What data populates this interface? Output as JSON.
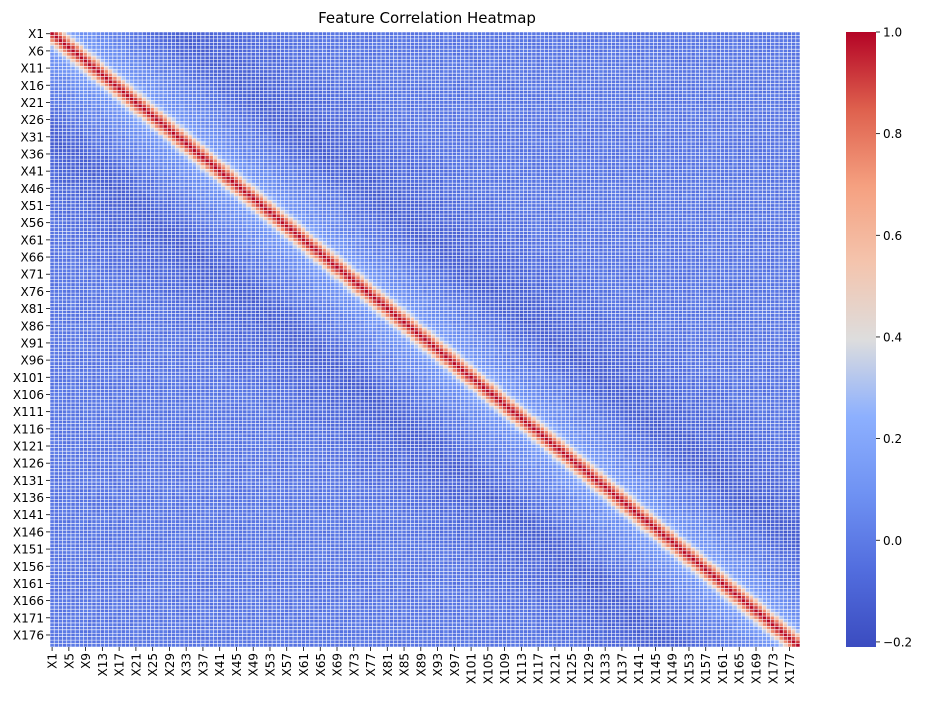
{
  "chart_data": {
    "type": "heatmap",
    "title": "Feature Correlation Heatmap",
    "xlabel": "",
    "ylabel": "",
    "n_features": 179,
    "feature_prefix": "X",
    "x_tick_labels": [
      "X1",
      "X5",
      "X9",
      "X13",
      "X17",
      "X21",
      "X25",
      "X29",
      "X33",
      "X37",
      "X41",
      "X45",
      "X49",
      "X53",
      "X57",
      "X61",
      "X65",
      "X69",
      "X73",
      "X77",
      "X81",
      "X85",
      "X89",
      "X93",
      "X97",
      "X101",
      "X105",
      "X109",
      "X113",
      "X117",
      "X121",
      "X125",
      "X129",
      "X133",
      "X137",
      "X141",
      "X145",
      "X149",
      "X153",
      "X157",
      "X161",
      "X165",
      "X169",
      "X173",
      "X177"
    ],
    "y_tick_labels": [
      "X1",
      "X6",
      "X11",
      "X16",
      "X21",
      "X26",
      "X31",
      "X36",
      "X41",
      "X46",
      "X51",
      "X56",
      "X61",
      "X66",
      "X71",
      "X76",
      "X81",
      "X86",
      "X91",
      "X96",
      "X101",
      "X106",
      "X111",
      "X116",
      "X121",
      "X126",
      "X131",
      "X136",
      "X141",
      "X146",
      "X151",
      "X156",
      "X161",
      "X166",
      "X171",
      "X176"
    ],
    "correlation_by_lag": {
      "lags": [
        0,
        1,
        2,
        3,
        4,
        5,
        6,
        8,
        10,
        12,
        15,
        20,
        25,
        30,
        40,
        60,
        90,
        178
      ],
      "values": [
        1.0,
        0.9,
        0.75,
        0.5,
        0.3,
        0.17,
        0.12,
        0.09,
        0.07,
        0.05,
        0.02,
        -0.02,
        -0.08,
        -0.12,
        -0.08,
        -0.02,
        -0.02,
        -0.02
      ]
    },
    "colorbar": {
      "colormap": "coolwarm",
      "vmin": -0.21,
      "vmax": 1.0,
      "ticks": [
        -0.2,
        0.0,
        0.2,
        0.4,
        0.6,
        0.8,
        1.0
      ],
      "tick_labels": [
        "−0.2",
        "0.0",
        "0.2",
        "0.4",
        "0.6",
        "0.8",
        "1.0"
      ]
    },
    "grid_lines": true,
    "grid_line_color": "#ffffff"
  }
}
